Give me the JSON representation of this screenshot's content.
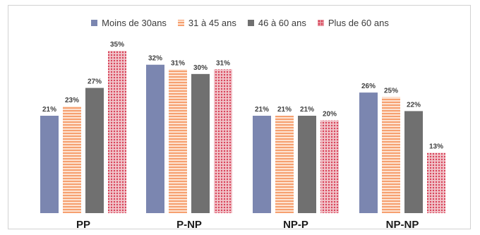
{
  "chart_data": {
    "type": "bar",
    "categories": [
      "PP",
      "P-NP",
      "NP-P",
      "NP-NP"
    ],
    "series": [
      {
        "name": "Moins de 30ans",
        "values": [
          21,
          32,
          21,
          26
        ],
        "labels": [
          "21%",
          "32%",
          "21%",
          "26%"
        ],
        "color": "#7b86b0",
        "pattern": "solid"
      },
      {
        "name": "31 à 45 ans",
        "values": [
          23,
          31,
          21,
          25
        ],
        "labels": [
          "23%",
          "31%",
          "21%",
          "25%"
        ],
        "color": "#f6a070",
        "pattern": "horizontal-stripes"
      },
      {
        "name": "46 à 60 ans",
        "values": [
          27,
          30,
          21,
          22
        ],
        "labels": [
          "27%",
          "30%",
          "21%",
          "22%"
        ],
        "color": "#707070",
        "pattern": "solid"
      },
      {
        "name": "Plus de 60 ans",
        "values": [
          35,
          31,
          20,
          13
        ],
        "labels": [
          "35%",
          "31%",
          "20%",
          "13%"
        ],
        "color": "#e06070",
        "pattern": "dots"
      }
    ],
    "ylim": [
      0,
      36
    ],
    "grid": false,
    "legend_position": "top"
  }
}
